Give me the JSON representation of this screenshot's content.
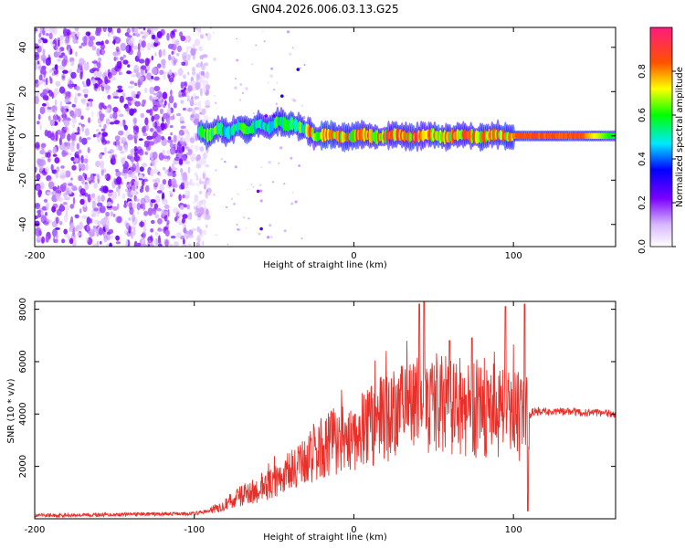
{
  "title": "GN04.2026.006.03.13.G25",
  "chart_data": [
    {
      "type": "heatmap",
      "name": "spectrogram",
      "xlabel": "Height of straight line (km)",
      "ylabel": "Frequency (Hz)",
      "xlim": [
        -200,
        164
      ],
      "ylim": [
        -50,
        49
      ],
      "xticks": [
        -200,
        -100,
        0,
        100
      ],
      "yticks": [
        -40,
        -20,
        0,
        20,
        40
      ],
      "colorbar": {
        "label": "Normalized spectral amplitude",
        "range": [
          0,
          1
        ],
        "ticks": [
          "0.0",
          "0.2",
          "0.4",
          "0.6",
          "0.8"
        ],
        "colors": [
          "#ffffff",
          "#8800ff",
          "#0000ff",
          "#00ffff",
          "#00ff00",
          "#ffff00",
          "#ff0000",
          "#ff0088"
        ]
      },
      "regions": [
        {
          "x_range": [
            -200,
            -90
          ],
          "description": "scattered noise",
          "amplitude": [
            0.05,
            0.25
          ]
        },
        {
          "x_range": [
            -97,
            100
          ],
          "description": "signal near 0 Hz with ripple",
          "center_freq": [
            0,
            6
          ],
          "amplitude": [
            0.4,
            0.9
          ]
        },
        {
          "x_range": [
            100,
            164
          ],
          "description": "steady signal at 0 Hz",
          "center_freq": 0,
          "amplitude": [
            0.7,
            0.95
          ]
        }
      ]
    },
    {
      "type": "line",
      "name": "snr",
      "xlabel": "Height of straight line (km)",
      "ylabel": "SNR (10 * v/v)",
      "xlim": [
        -200,
        164
      ],
      "ylim": [
        0,
        8300
      ],
      "xticks": [
        -200,
        -100,
        0,
        100
      ],
      "yticks": [
        2000,
        4000,
        6000,
        8000
      ],
      "color": "#e8302a",
      "envelope": {
        "x": [
          -200,
          -100,
          -90,
          -80,
          -70,
          -60,
          -50,
          -40,
          -30,
          -20,
          -10,
          0,
          10,
          20,
          30,
          40,
          50,
          60,
          70,
          80,
          90,
          100,
          108,
          112,
          130,
          164
        ],
        "y": [
          120,
          200,
          300,
          600,
          900,
          1100,
          1400,
          1800,
          2200,
          2700,
          3000,
          3200,
          3600,
          3800,
          4100,
          4300,
          4400,
          4300,
          4200,
          4200,
          4100,
          4000,
          3800,
          4100,
          4100,
          4000
        ]
      },
      "peaks": [
        {
          "x": 41,
          "y": 8200
        },
        {
          "x": 44,
          "y": 8300
        },
        {
          "x": 60,
          "y": 6800
        },
        {
          "x": 74,
          "y": 6900
        },
        {
          "x": 95,
          "y": 8100
        },
        {
          "x": 107,
          "y": 8200
        }
      ]
    }
  ]
}
